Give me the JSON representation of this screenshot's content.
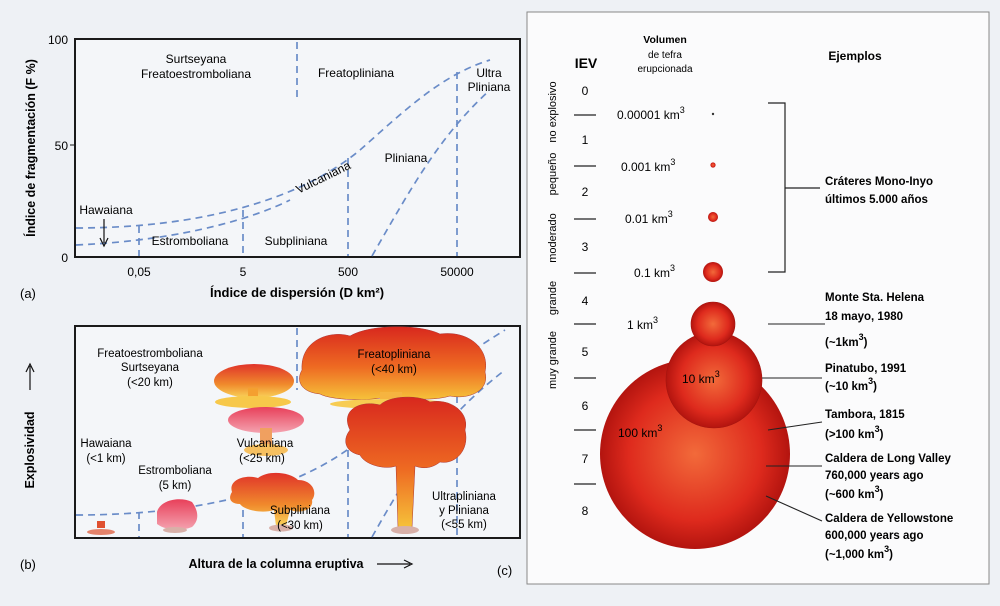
{
  "panel_a": {
    "ylabel": "Índice de fragmentación (F %)",
    "xlabel": "Índice de dispersión (D km²)",
    "panel_label": "(a)",
    "yticks": [
      "100",
      "50",
      "0"
    ],
    "xticks": [
      "0,05",
      "5",
      "500",
      "50000"
    ],
    "regions": {
      "surtseyana": "Surtseyana",
      "freatoestromboliana": "Freatoestromboliana",
      "freatopliniana": "Freatopliniana",
      "ultra": "Ultra",
      "pliniana_u": "Pliniana",
      "vulcaniana": "Vulcaniana",
      "pliniana": "Pliniana",
      "hawaiana": "Hawaiana",
      "estromboliana": "Estromboliana",
      "subpliniana": "Subpliniana"
    }
  },
  "panel_b": {
    "ylabel": "Explosividad",
    "xlabel": "Altura de la columna eruptiva",
    "panel_label": "(b)",
    "labels": {
      "freatoestromboliana": "Freatoestromboliana",
      "surtseyana": "Surtseyana",
      "surtseyana_h": "(<20 km)",
      "freatopliniana": "Freatopliniana",
      "freatopliniana_h": "(<40 km)",
      "vulcaniana": "Vulcaniana",
      "vulcaniana_h": "(<25 km)",
      "hawaiana": "Hawaiana",
      "hawaiana_h": "(<1 km)",
      "estromboliana": "Estromboliana",
      "estromboliana_h": "(5 km)",
      "subpliniana": "Subpliniana",
      "subpliniana_h": "(<30 km)",
      "ultrapliniana": "Ultrapliniana",
      "ypliniana": "y Pliniana",
      "ultrapliniana_h": "(<55 km)"
    }
  },
  "panel_c": {
    "panel_label": "(c)",
    "iev_header": "IEV",
    "volume_header": [
      "Volumen",
      "de tefra",
      "erupcionada"
    ],
    "examples_header": "Ejemplos",
    "scale_words": [
      "no explosivo",
      "pequeño",
      "moderado",
      "grande",
      "muy grande"
    ],
    "iev": [
      "0",
      "1",
      "2",
      "3",
      "4",
      "5",
      "6",
      "7",
      "8"
    ],
    "volumes": [
      "0.00001 km",
      "0.001 km",
      "0.01 km",
      "0.1 km",
      "1 km",
      "10 km",
      "100 km"
    ],
    "cube": "3",
    "examples": {
      "mono_1": "Cráteres Mono-Inyo",
      "mono_2": "últimos 5.000 años",
      "helena_1": "Monte Sta. Helena",
      "helena_2": "18 mayo, 1980",
      "helena_3": "(~1km",
      "pinatubo_1": "Pinatubo, 1991",
      "pinatubo_2": "(~10 km",
      "tambora_1": "Tambora, 1815",
      "tambora_2": "(>100 km",
      "longvalley_1": "Caldera de Long Valley",
      "longvalley_2": "760,000 years ago",
      "longvalley_3": "(~600 km",
      "yellow_1": "Caldera de Yellowstone",
      "yellow_2": "600,000 years ago",
      "yellow_3": "(~1,000 km",
      "close": ")"
    }
  }
}
